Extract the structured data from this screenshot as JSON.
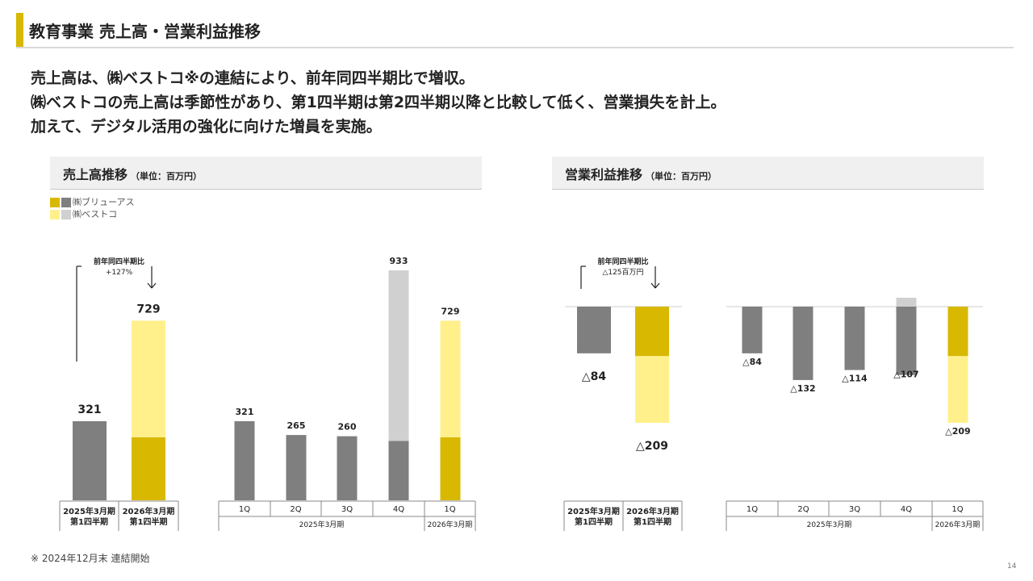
{
  "title": "教育事業 売上高・営業利益推移",
  "lead_lines": [
    "売上高は、㈱ベストコ※の連結により、前年同四半期比で増収。",
    "㈱ベストコの売上高は季節性があり、第1四半期は第2四半期以降と比較して低く、営業損失を計上。",
    "加えて、デジタル活用の強化に向けた増員を実施。"
  ],
  "panels": {
    "sales": {
      "title": "売上高推移",
      "unit": "（単位：百万円）"
    },
    "profit": {
      "title": "営業利益推移",
      "unit": "（単位：百万円）"
    }
  },
  "legend": [
    {
      "label": "㈱ブリューアス",
      "colors": [
        "#d8b800",
        "#7f7f7f"
      ]
    },
    {
      "label": "㈱ベストコ",
      "colors": [
        "#fff08c",
        "#d0d0d0"
      ]
    }
  ],
  "colors": {
    "accent": "#d8b800",
    "gray": "#7f7f7f",
    "light_yellow": "#fff08c",
    "light_gray": "#d0d0d0"
  },
  "chart_data": [
    {
      "type": "bar",
      "name": "sales-yoy",
      "categories": [
        "2025年3月期\n第1四半期",
        "2026年3月期\n第1四半期"
      ],
      "series": [
        {
          "name": "㈱ブリューアス",
          "values": [
            321,
            256
          ]
        },
        {
          "name": "㈱ベストコ",
          "values": [
            0,
            473
          ]
        }
      ],
      "totals": [
        "321",
        "729"
      ],
      "annotation": {
        "line1": "前年同四半期比",
        "line2": "+127%"
      },
      "ylim": [
        0,
        933
      ]
    },
    {
      "type": "bar",
      "name": "sales-quarterly",
      "categories": [
        "1Q",
        "2Q",
        "3Q",
        "4Q",
        "1Q"
      ],
      "groups": [
        {
          "label": "2025年3月期",
          "span": 4
        },
        {
          "label": "2026年3月期",
          "span": 1
        }
      ],
      "series": [
        {
          "name": "㈱ブリューアス",
          "values": [
            321,
            265,
            260,
            241,
            256
          ]
        },
        {
          "name": "㈱ベストコ",
          "values": [
            0,
            0,
            0,
            692,
            473
          ]
        }
      ],
      "totals": [
        "321",
        "265",
        "260",
        "933",
        "729"
      ],
      "ylim": [
        0,
        933
      ]
    },
    {
      "type": "bar",
      "name": "profit-yoy",
      "categories": [
        "2025年3月期\n第1四半期",
        "2026年3月期\n第1四半期"
      ],
      "series": [
        {
          "name": "㈱ブリューアス",
          "values": [
            -84,
            -89
          ]
        },
        {
          "name": "㈱ベストコ",
          "values": [
            0,
            -120
          ]
        }
      ],
      "totals": [
        "△84",
        "△209"
      ],
      "annotation": {
        "line1": "前年同四半期比",
        "line2": "△125百万円"
      },
      "ylim": [
        -209,
        0
      ]
    },
    {
      "type": "bar",
      "name": "profit-quarterly",
      "categories": [
        "1Q",
        "2Q",
        "3Q",
        "4Q",
        "1Q"
      ],
      "groups": [
        {
          "label": "2025年3月期",
          "span": 4
        },
        {
          "label": "2026年3月期",
          "span": 1
        }
      ],
      "series": [
        {
          "name": "㈱ブリューアス",
          "values": [
            -84,
            -132,
            -114,
            -123,
            -89
          ]
        },
        {
          "name": "㈱ベストコ",
          "values": [
            0,
            0,
            0,
            16,
            -120
          ]
        }
      ],
      "totals": [
        "△84",
        "△132",
        "△114",
        "△107",
        "△209"
      ],
      "ylim": [
        -209,
        16
      ]
    }
  ],
  "footnote": "※ 2024年12月末 連結開始",
  "page_number": "14"
}
